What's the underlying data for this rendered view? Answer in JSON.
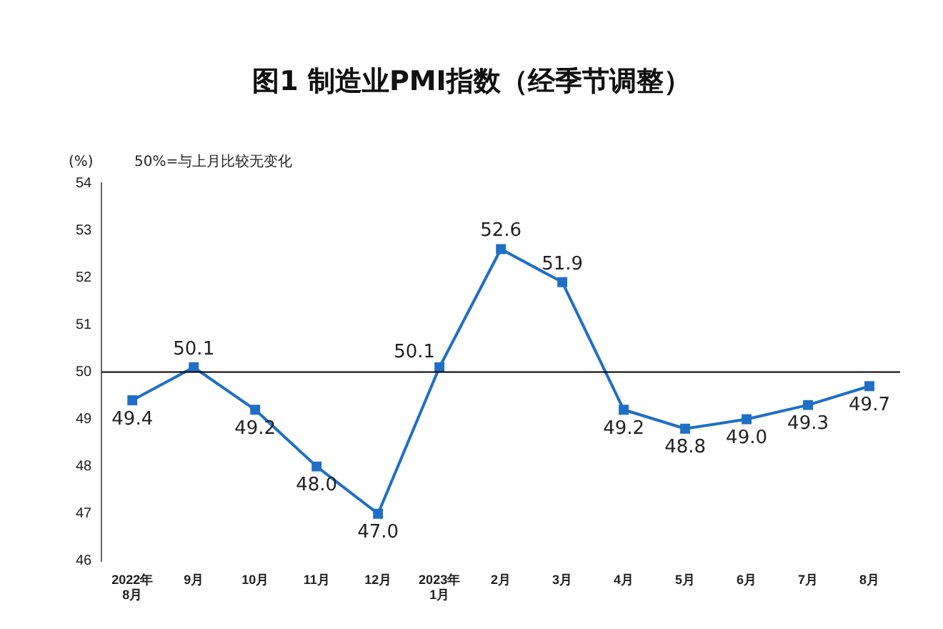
{
  "chart_data": {
    "type": "line",
    "title": "图1 制造业PMI指数（经季节调整）",
    "ylabel": "(%)",
    "annotations": [
      "50%=与上月比较无变化"
    ],
    "categories": [
      "2022年\n8月",
      "9月",
      "10月",
      "11月",
      "12月",
      "2023年\n1月",
      "2月",
      "3月",
      "4月",
      "5月",
      "6月",
      "7月",
      "8月"
    ],
    "series": [
      {
        "color": "#1f6fc5",
        "values": [
          49.4,
          50.1,
          49.2,
          48.0,
          47.0,
          50.1,
          52.6,
          51.9,
          49.2,
          48.8,
          49.0,
          49.3,
          49.7
        ]
      }
    ],
    "value_labels": [
      "49.4",
      "50.1",
      "49.2",
      "48.0",
      "47.0",
      "50.1",
      "52.6",
      "51.9",
      "49.2",
      "48.8",
      "49.0",
      "49.3",
      "49.7"
    ],
    "ylim": [
      46,
      54
    ],
    "yticks": [
      46,
      47,
      48,
      49,
      50,
      51,
      52,
      53,
      54
    ],
    "ref_lines": [
      {
        "axis": "y",
        "value": 50,
        "color": "#000000"
      }
    ],
    "grid": false,
    "legend": false,
    "marker": "square",
    "line_style": "solid"
  }
}
